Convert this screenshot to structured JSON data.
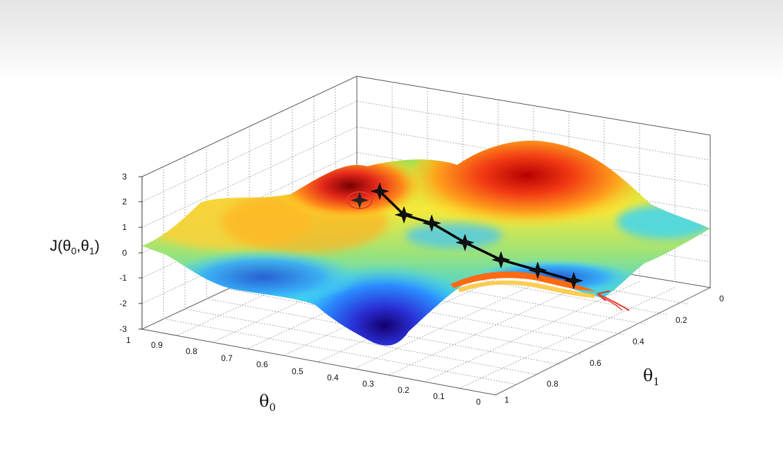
{
  "chart_data": {
    "type": "surface",
    "xlabel_base": "θ",
    "xlabel_sub": "0",
    "ylabel_base": "θ",
    "ylabel_sub": "1",
    "zlabel": {
      "prefix": "J(θ",
      "sub0": "0",
      "mid": ",θ",
      "sub1": "1",
      "suffix": ")"
    },
    "x_ticks": [
      "1",
      "0.9",
      "0.8",
      "0.7",
      "0.6",
      "0.5",
      "0.4",
      "0.3",
      "0.2",
      "0.1",
      "0"
    ],
    "y_ticks": [
      "0",
      "0.2",
      "0.4",
      "0.6",
      "0.8",
      "1"
    ],
    "z_ticks": [
      "3",
      "2",
      "1",
      "0",
      "-1",
      "-2",
      "-3"
    ],
    "xlim": [
      0,
      1
    ],
    "ylim": [
      0,
      1
    ],
    "zlim": [
      -3,
      3
    ],
    "colormap": "jet",
    "grid": true,
    "descent_path": {
      "color": "#000000",
      "points": [
        {
          "theta0": 0.62,
          "theta1": 0.25,
          "J": 2.3
        },
        {
          "theta0": 0.58,
          "theta1": 0.34,
          "J": 1.6
        },
        {
          "theta0": 0.52,
          "theta1": 0.4,
          "J": 1.2
        },
        {
          "theta0": 0.45,
          "theta1": 0.48,
          "J": 0.5
        },
        {
          "theta0": 0.38,
          "theta1": 0.58,
          "J": -0.2
        },
        {
          "theta0": 0.3,
          "theta1": 0.66,
          "J": -0.6
        },
        {
          "theta0": 0.22,
          "theta1": 0.78,
          "J": -1.1
        }
      ]
    },
    "start_marker": {
      "theta0": 0.68,
      "theta1": 0.22,
      "J": 2.0,
      "circle_color": "#e33b2a"
    },
    "pointer_color": "#e33b2a"
  }
}
